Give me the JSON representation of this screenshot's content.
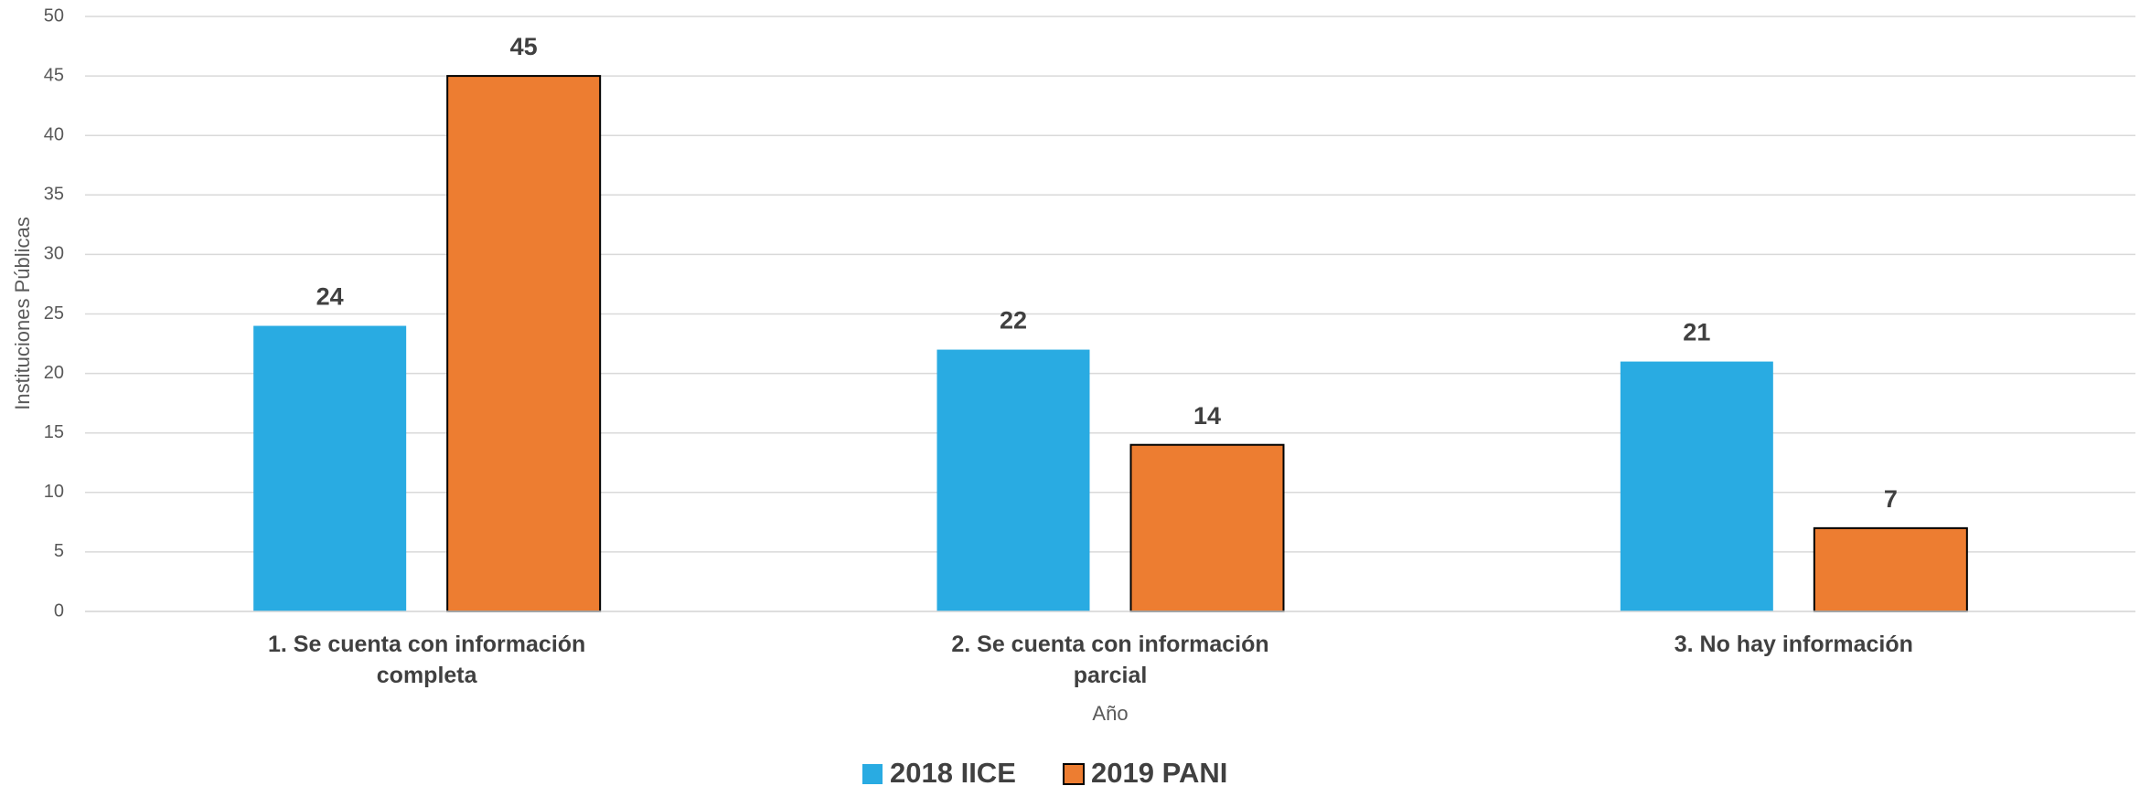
{
  "chart_data": {
    "type": "bar",
    "categories": [
      "1. Se cuenta con información completa",
      "2. Se cuenta con información parcial",
      "3. No hay información"
    ],
    "series": [
      {
        "name": "2018 IICE",
        "color": "#29abe2",
        "values": [
          24,
          22,
          21
        ]
      },
      {
        "name": "2019 PANI",
        "color": "#ed7d31",
        "values": [
          45,
          14,
          7
        ]
      }
    ],
    "ylabel": "Instituciones Públicas",
    "xlabel": "Año",
    "ylim": [
      0,
      50
    ],
    "yticks": [
      0,
      5,
      10,
      15,
      20,
      25,
      30,
      35,
      40,
      45,
      50
    ],
    "grid": true,
    "legend": "bottom"
  }
}
